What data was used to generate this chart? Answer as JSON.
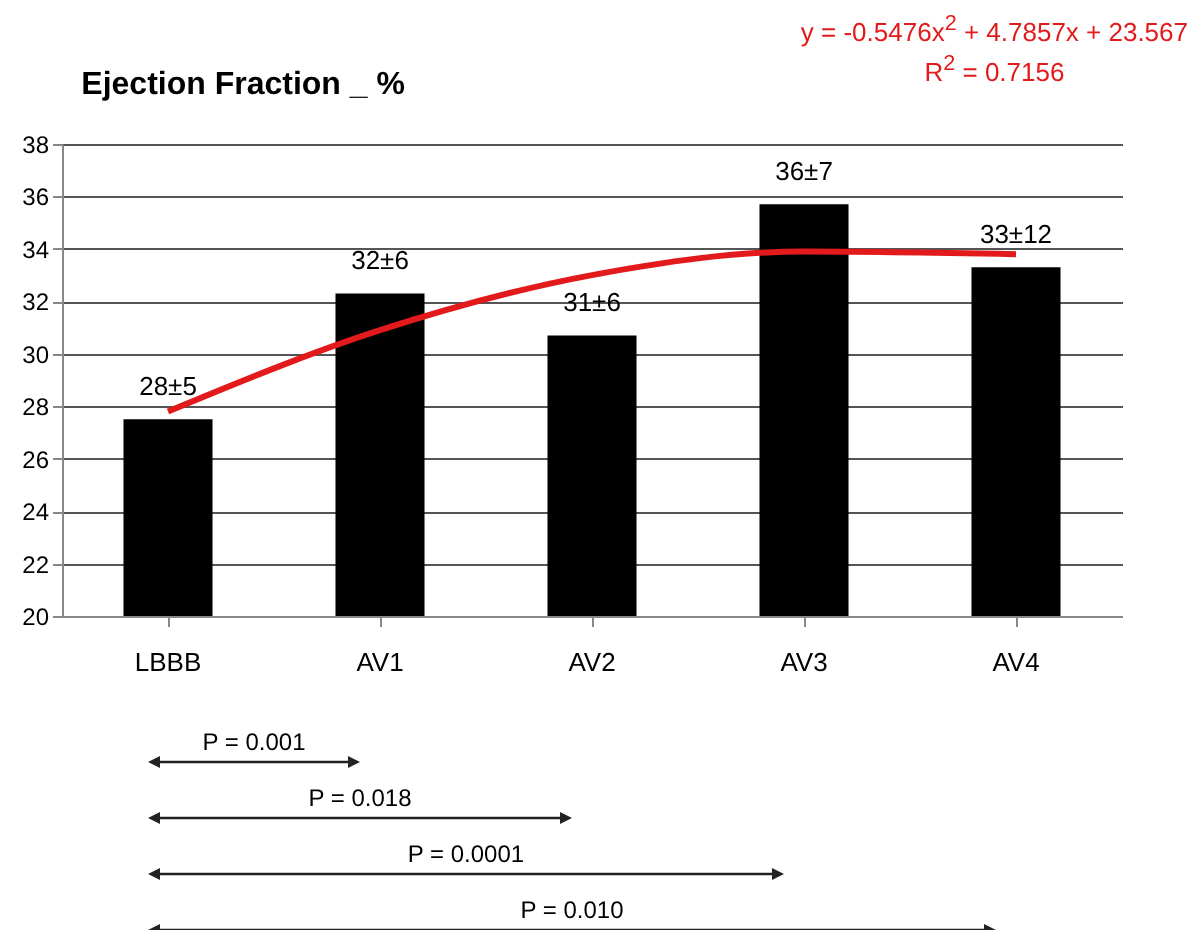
{
  "chart_data": {
    "type": "bar",
    "title": "Ejection Fraction _ %",
    "categories": [
      "LBBB",
      "AV1",
      "AV2",
      "AV3",
      "AV4"
    ],
    "series": [
      {
        "color": "#000000",
        "values": [
          27.5,
          32.3,
          30.7,
          35.7,
          33.3
        ],
        "value_labels": [
          "28±5",
          "32±6",
          "31±6",
          "36±7",
          "33±12"
        ]
      },
      {
        "type": "line",
        "color": "#e31a1c",
        "values": [
          27.8,
          30.9,
          33.0,
          33.9,
          33.8
        ]
      }
    ],
    "ylim": [
      20,
      38
    ],
    "yticks": [
      20,
      22,
      24,
      26,
      28,
      30,
      32,
      34,
      36,
      38
    ],
    "grid": "y",
    "annotations": [
      "y = -0.5476x$^{2}$ + 4.7857x + 23.567",
      "R$^{2}$ = 0.7156",
      "P = 0.001",
      "P = 0.018",
      "P = 0.0001",
      "P = 0.010"
    ]
  }
}
